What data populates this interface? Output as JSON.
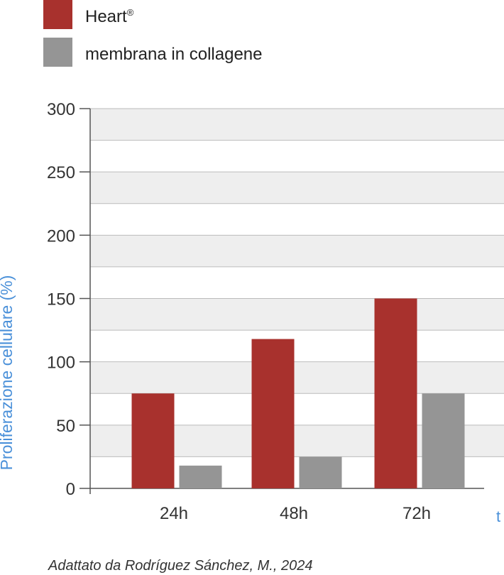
{
  "legend": {
    "items": [
      {
        "label": "Heart",
        "superscript": "®",
        "color": "#a8312d"
      },
      {
        "label": "membrana in collagene",
        "superscript": "",
        "color": "#959595"
      }
    ]
  },
  "source": "Adattato da Rodríguez Sánchez, M., 2024",
  "chart_data": {
    "type": "bar",
    "categories": [
      "24h",
      "48h",
      "72h"
    ],
    "series": [
      {
        "name": "Heart®",
        "values": [
          75,
          118,
          150
        ],
        "color": "#a8312d"
      },
      {
        "name": "membrana in collagene",
        "values": [
          18,
          25,
          75
        ],
        "color": "#959595"
      }
    ],
    "title": "",
    "xlabel": "t",
    "ylabel": "Proliferazione cellulare (%)",
    "ylim": [
      0,
      300
    ],
    "yticks": [
      0,
      50,
      100,
      150,
      200,
      250,
      300
    ],
    "grid": true,
    "background_bands": true,
    "legend_position": "top-left",
    "colors": {
      "axis_label": "#4a90d9",
      "band": "#eeeeee",
      "grid": "#bbbbbb",
      "axis": "#555555"
    }
  }
}
